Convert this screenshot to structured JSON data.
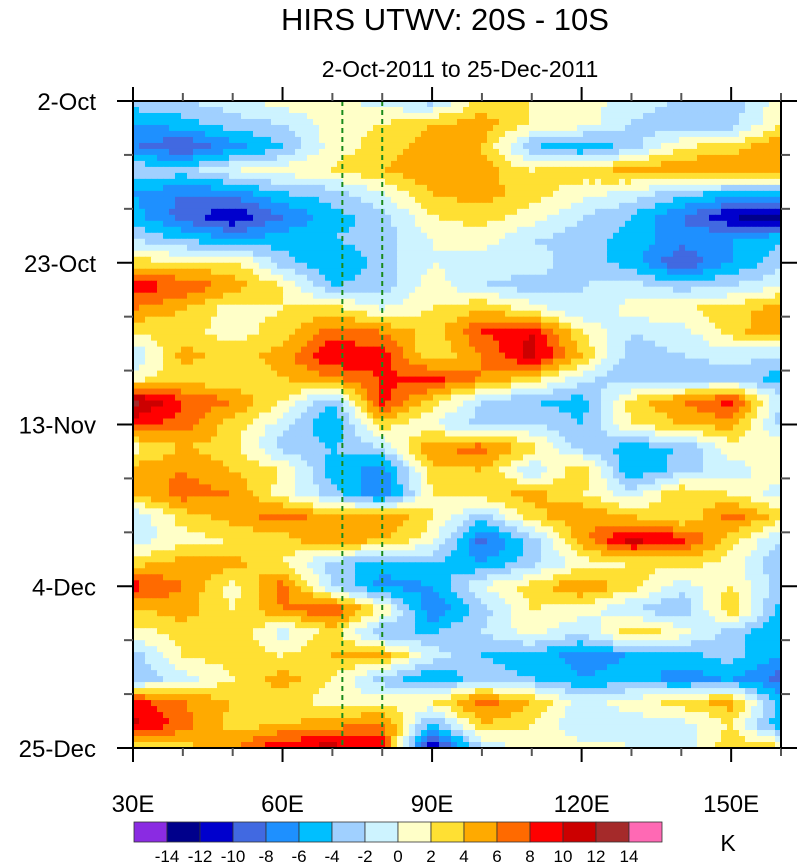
{
  "chart_data": {
    "type": "heatmap",
    "title": "HIRS UTWV: 20S - 10S",
    "subtitle": "2-Oct-2011 to 25-Dec-2011",
    "xlabel": "",
    "ylabel": "",
    "units_label": "K",
    "x_range": [
      30,
      160
    ],
    "x_ticks": [
      {
        "value": 30,
        "label": "30E"
      },
      {
        "value": 60,
        "label": "60E"
      },
      {
        "value": 90,
        "label": "90E"
      },
      {
        "value": 120,
        "label": "120E"
      },
      {
        "value": 150,
        "label": "150E"
      }
    ],
    "x_minor_step": 10,
    "y_range_days": [
      0,
      84
    ],
    "y_ticks": [
      {
        "day": 0,
        "label": "2-Oct"
      },
      {
        "day": 21,
        "label": "23-Oct"
      },
      {
        "day": 42,
        "label": "13-Nov"
      },
      {
        "day": 63,
        "label": "4-Dec"
      },
      {
        "day": 84,
        "label": "25-Dec"
      }
    ],
    "y_minor_step_days": 7,
    "reference_lines_lon": [
      72,
      80
    ],
    "reference_line_color": "#1a8a1a",
    "contour_levels": [
      -14,
      -12,
      -10,
      -8,
      -6,
      -4,
      -2,
      0,
      2,
      4,
      6,
      8,
      10,
      12,
      14
    ],
    "colorbar_colors": [
      "#8a2be2",
      "#00008b",
      "#0000cd",
      "#4169e1",
      "#1e90ff",
      "#00bfff",
      "#a0d0ff",
      "#cdf3ff",
      "#ffffc8",
      "#ffe033",
      "#ffaa00",
      "#ff6a00",
      "#ff0000",
      "#cc0000",
      "#a52a2a",
      "#ff69b4"
    ],
    "colorbar_labels": [
      "-14",
      "-12",
      "-10",
      "-8",
      "-6",
      "-4",
      "-2",
      "0",
      "2",
      "4",
      "6",
      "8",
      "10",
      "12",
      "14"
    ],
    "grid_lons": [
      30,
      40,
      50,
      60,
      70,
      80,
      90,
      100,
      110,
      120,
      130,
      140,
      150,
      160
    ],
    "grid_days": [
      0,
      3,
      6,
      9,
      12,
      15,
      18,
      21,
      24,
      27,
      30,
      33,
      36,
      39,
      42,
      45,
      48,
      51,
      54,
      57,
      60,
      63,
      66,
      69,
      72,
      75,
      78,
      81,
      84
    ],
    "values": [
      [
        -3,
        -2,
        -1,
        1,
        1,
        -1,
        -3,
        3,
        2,
        1,
        -1,
        -2,
        -3,
        1
      ],
      [
        -6,
        -5,
        -3,
        -2,
        1,
        2,
        4,
        5,
        2,
        1,
        -2,
        -4,
        -3,
        2
      ],
      [
        -8,
        -10,
        -7,
        -4,
        1,
        3,
        5,
        4,
        -4,
        -6,
        -3,
        2,
        3,
        6
      ],
      [
        -2,
        -3,
        0,
        1,
        2,
        4,
        6,
        5,
        2,
        3,
        5,
        6,
        6,
        4
      ],
      [
        -6,
        -8,
        -7,
        -4,
        -3,
        0,
        4,
        5,
        3,
        1,
        -1,
        -3,
        -5,
        -4
      ],
      [
        -5,
        -9,
        -12,
        -8,
        -5,
        -3,
        2,
        3,
        1,
        -2,
        -4,
        -8,
        -12,
        -14
      ],
      [
        -2,
        -4,
        -6,
        -5,
        -4,
        -3,
        0,
        1,
        -2,
        -3,
        -5,
        -7,
        -6,
        -4
      ],
      [
        3,
        2,
        3,
        -3,
        -6,
        -3,
        0,
        -1,
        -1,
        -3,
        -5,
        -10,
        -6,
        -3
      ],
      [
        9,
        8,
        5,
        2,
        -4,
        -3,
        1,
        -2,
        -3,
        -2,
        -1,
        -3,
        -2,
        0
      ],
      [
        6,
        4,
        1,
        2,
        3,
        0,
        2,
        4,
        1,
        -2,
        1,
        2,
        3,
        5
      ],
      [
        2,
        3,
        1,
        3,
        7,
        6,
        3,
        8,
        10,
        2,
        -2,
        -1,
        3,
        6
      ],
      [
        -2,
        5,
        3,
        5,
        10,
        9,
        2,
        6,
        11,
        4,
        -3,
        -2,
        -1,
        -2
      ],
      [
        1,
        3,
        2,
        4,
        6,
        8,
        9,
        6,
        3,
        -1,
        -4,
        -4,
        -3,
        -5
      ],
      [
        13,
        8,
        6,
        2,
        -4,
        9,
        3,
        -2,
        -4,
        -5,
        3,
        6,
        9,
        -2
      ],
      [
        9,
        7,
        3,
        -1,
        -6,
        3,
        0,
        -3,
        -2,
        -4,
        2,
        4,
        5,
        -3
      ],
      [
        1,
        4,
        3,
        -3,
        -4,
        -2,
        6,
        7,
        3,
        -3,
        -5,
        -4,
        1,
        2
      ],
      [
        5,
        6,
        4,
        2,
        -5,
        -7,
        3,
        4,
        -2,
        4,
        -6,
        -3,
        -1,
        1
      ],
      [
        4,
        7,
        6,
        1,
        -3,
        -8,
        2,
        3,
        5,
        2,
        -1,
        4,
        2,
        -1
      ],
      [
        -2,
        3,
        5,
        7,
        5,
        6,
        2,
        -3,
        3,
        6,
        4,
        2,
        7,
        3
      ],
      [
        -1,
        1,
        2,
        3,
        6,
        4,
        1,
        -9,
        -3,
        5,
        11,
        9,
        3,
        -2
      ],
      [
        3,
        5,
        5,
        2,
        -3,
        -5,
        -4,
        -6,
        -3,
        1,
        2,
        3,
        1,
        -4
      ],
      [
        9,
        6,
        1,
        7,
        -2,
        -7,
        -6,
        0,
        3,
        6,
        3,
        -1,
        2,
        -3
      ],
      [
        4,
        5,
        2,
        6,
        8,
        2,
        -8,
        -3,
        2,
        1,
        -2,
        -4,
        4,
        -5
      ],
      [
        1,
        3,
        4,
        -1,
        3,
        -4,
        -4,
        -2,
        1,
        -2,
        4,
        1,
        -3,
        -6
      ],
      [
        -3,
        2,
        3,
        2,
        4,
        5,
        -1,
        -4,
        -5,
        -7,
        -6,
        -5,
        -3,
        -6
      ],
      [
        -4,
        -1,
        2,
        5,
        2,
        -3,
        -6,
        -3,
        -4,
        -6,
        -5,
        -7,
        -6,
        -9
      ],
      [
        9,
        6,
        4,
        3,
        1,
        1,
        2,
        7,
        4,
        -1,
        1,
        3,
        5,
        -5
      ],
      [
        11,
        7,
        3,
        4,
        5,
        7,
        -5,
        4,
        2,
        -2,
        -1,
        -1,
        2,
        -6
      ],
      [
        2,
        3,
        6,
        10,
        11,
        9,
        -13,
        -2,
        1,
        1,
        0,
        -2,
        4,
        3
      ]
    ]
  }
}
